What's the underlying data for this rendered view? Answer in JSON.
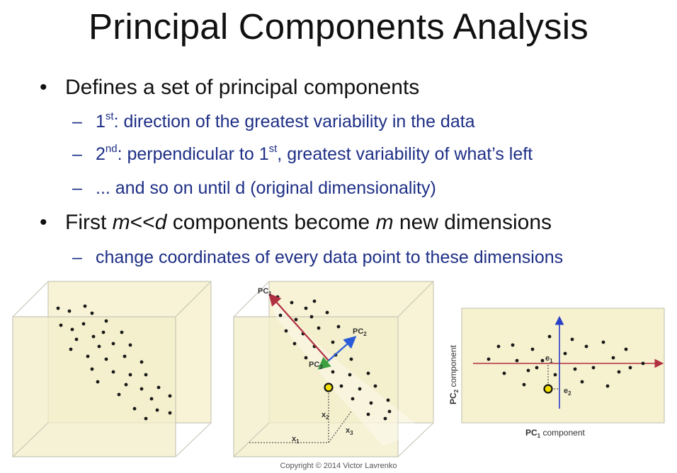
{
  "title": "Principal Components Analysis",
  "bullets": {
    "b1": "Defines a set of principal components",
    "b1_sub1_sup": "st",
    "b1_sub1": ": direction of the greatest variability in the data",
    "b1_sub2_sup1": "nd",
    "b1_sub2_mid": ": perpendicular to 1",
    "b1_sub2_sup2": "st",
    "b1_sub2_end": ", greatest variability of what’s left",
    "b1_sub3": "... and so on until d (original dimensionality)",
    "b2_pre": "First ",
    "b2_m": "m",
    "b2_ll": "<<",
    "b2_d": "d",
    "b2_mid": " components become ",
    "b2_m2": "m",
    "b2_end": " new dimensions",
    "b2_sub1": "change coordinates of every data point to these dimensions",
    "bullet_char": "•",
    "dash_char": "–",
    "one": "1",
    "two": "2"
  },
  "figure2": {
    "pc1": "PC",
    "pc1_sub": "1",
    "pc2": "PC",
    "pc2_sub": "2",
    "pc3": "PC",
    "pc3_sub": "3",
    "x1": "x",
    "x1_sub": "1",
    "x2": "x",
    "x2_sub": "2",
    "x3": "x",
    "x3_sub": "3"
  },
  "figure3": {
    "xlabel_pc": "PC",
    "xlabel_sub": "1",
    "xlabel_rest": " component",
    "ylabel_pc": "PC",
    "ylabel_sub": "2",
    "ylabel_rest": " component",
    "e1": "e",
    "e1_sub": "1",
    "e2": "e",
    "e2_sub": "2"
  },
  "copyright": "Copyright © 2014 Victor Lavrenko",
  "colors": {
    "subbullet": "#1e2f86",
    "box_fill": "#f6f1cf",
    "pc1_arrow": "#b03040",
    "pc2_arrow": "#2a5bd8",
    "pc3_arrow": "#3aa040",
    "axis_red": "#b03040",
    "axis_blue": "#2a3fc8",
    "highlight": "#f3e000"
  }
}
